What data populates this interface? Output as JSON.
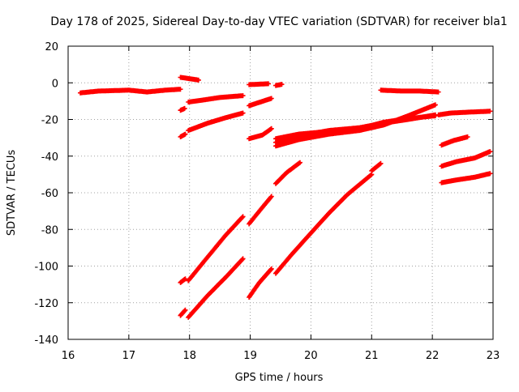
{
  "chart_data": {
    "type": "scatter",
    "title": "Day 178 of 2025, Sidereal Day-to-day VTEC variation (SDTVAR) for receiver bla1",
    "xlabel": "GPS time / hours",
    "ylabel": "SDTVAR / TECUs",
    "xlim": [
      16,
      23
    ],
    "ylim": [
      -140,
      20
    ],
    "xticks": [
      16,
      17,
      18,
      19,
      20,
      21,
      22,
      23
    ],
    "yticks": [
      20,
      0,
      -20,
      -40,
      -60,
      -80,
      -100,
      -120,
      -140
    ],
    "grid": true,
    "legend": "none",
    "marker_color": "#ff0000",
    "segments": [
      {
        "x": [
          16.2,
          16.5,
          17.0,
          17.3,
          17.6,
          17.85
        ],
        "y": [
          -5.5,
          -4.5,
          -4.0,
          -5.0,
          -4.0,
          -3.5
        ]
      },
      {
        "x": [
          17.85,
          18.15
        ],
        "y": [
          3.0,
          1.5
        ]
      },
      {
        "x": [
          17.85,
          17.92
        ],
        "y": [
          -15.0,
          -14.0
        ]
      },
      {
        "x": [
          17.98,
          18.2,
          18.5,
          18.88
        ],
        "y": [
          -10.5,
          -9.5,
          -8.0,
          -7.0
        ]
      },
      {
        "x": [
          17.85,
          17.93
        ],
        "y": [
          -29.5,
          -28.0
        ]
      },
      {
        "x": [
          17.98,
          18.3,
          18.6,
          18.88
        ],
        "y": [
          -26.0,
          -22.0,
          -19.0,
          -16.5
        ]
      },
      {
        "x": [
          17.85,
          17.93
        ],
        "y": [
          -109.0,
          -107.0
        ]
      },
      {
        "x": [
          17.98,
          18.3,
          18.6,
          18.88
        ],
        "y": [
          -108.0,
          -95.0,
          -83.0,
          -73.0
        ]
      },
      {
        "x": [
          17.85,
          17.93
        ],
        "y": [
          -127.0,
          -124.0
        ]
      },
      {
        "x": [
          17.98,
          18.3,
          18.6,
          18.88
        ],
        "y": [
          -128.0,
          -116.0,
          -106.0,
          -96.0
        ]
      },
      {
        "x": [
          18.98,
          19.3
        ],
        "y": [
          -1.0,
          -0.5
        ]
      },
      {
        "x": [
          19.42,
          19.52
        ],
        "y": [
          -1.5,
          -0.8
        ]
      },
      {
        "x": [
          18.98,
          19.35
        ],
        "y": [
          -12.5,
          -8.5
        ]
      },
      {
        "x": [
          18.98,
          19.2,
          19.35
        ],
        "y": [
          -30.5,
          -28.5,
          -25.0
        ]
      },
      {
        "x": [
          18.98,
          19.15,
          19.35
        ],
        "y": [
          -77.0,
          -70.0,
          -62.0
        ]
      },
      {
        "x": [
          18.98,
          19.15,
          19.35
        ],
        "y": [
          -117.0,
          -109.0,
          -101.5
        ]
      },
      {
        "x": [
          19.42,
          19.6,
          19.82
        ],
        "y": [
          -55.0,
          -49.0,
          -43.5
        ]
      },
      {
        "x": [
          19.42,
          19.7,
          20.0,
          20.3,
          20.6,
          21.0
        ],
        "y": [
          -104.0,
          -93.0,
          -82.0,
          -71.0,
          -61.0,
          -50.0
        ]
      },
      {
        "x": [
          21.0,
          21.15
        ],
        "y": [
          -48.0,
          -44.0
        ]
      },
      {
        "x": [
          19.42,
          19.8,
          20.3,
          20.8,
          21.2,
          21.6,
          22.05
        ],
        "y": [
          -34.5,
          -31.0,
          -28.0,
          -26.0,
          -23.0,
          -18.0,
          -12.0
        ]
      },
      {
        "x": [
          19.42,
          19.8,
          20.3,
          20.8,
          21.2,
          21.6,
          22.05
        ],
        "y": [
          -32.5,
          -29.0,
          -26.0,
          -24.5,
          -22.0,
          -20.0,
          -17.5
        ]
      },
      {
        "x": [
          19.42,
          19.8,
          20.3,
          20.8,
          21.2,
          21.6,
          22.05
        ],
        "y": [
          -30.5,
          -28.0,
          -26.5,
          -25.0,
          -21.5,
          -19.5,
          -18.0
        ]
      },
      {
        "x": [
          21.15,
          21.5,
          21.8,
          22.1
        ],
        "y": [
          -4.0,
          -4.5,
          -4.5,
          -5.0
        ]
      },
      {
        "x": [
          22.1,
          22.3,
          22.6,
          22.95
        ],
        "y": [
          -17.5,
          -16.5,
          -16.0,
          -15.5
        ]
      },
      {
        "x": [
          22.15,
          22.35,
          22.58
        ],
        "y": [
          -34.0,
          -31.5,
          -29.5
        ]
      },
      {
        "x": [
          22.15,
          22.4,
          22.7,
          22.95
        ],
        "y": [
          -45.5,
          -43.0,
          -41.0,
          -37.5
        ]
      },
      {
        "x": [
          22.15,
          22.4,
          22.7,
          22.95
        ],
        "y": [
          -54.5,
          -53.0,
          -51.5,
          -49.5
        ]
      }
    ]
  }
}
